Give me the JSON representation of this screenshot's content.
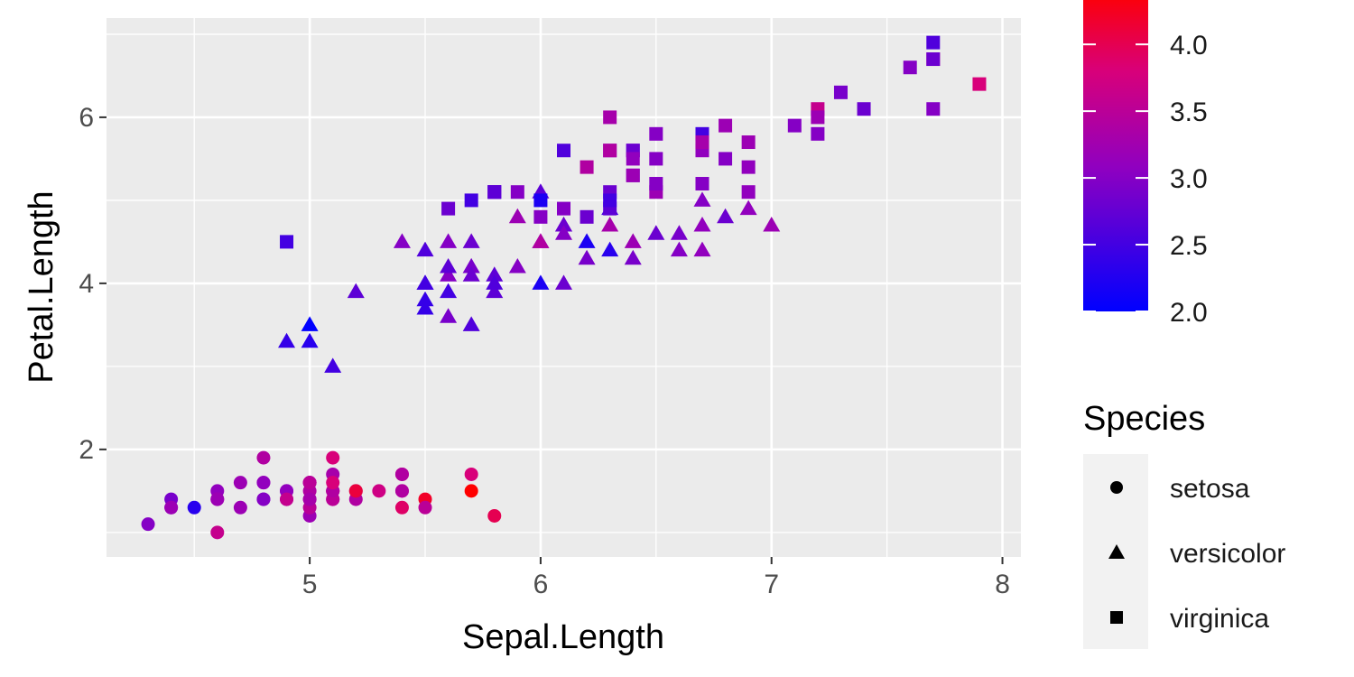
{
  "chart_data": {
    "type": "scatter",
    "title": "",
    "xlabel": "Sepal.Length",
    "ylabel": "Petal.Length",
    "xlim": [
      4.12,
      8.08
    ],
    "ylim": [
      0.705,
      7.195
    ],
    "x_ticks": [
      5,
      6,
      7,
      8
    ],
    "y_ticks": [
      2,
      4,
      6
    ],
    "grid": true,
    "color_scale": {
      "variable": "Sepal.Width",
      "low": "#0000ff",
      "high": "#ff0000",
      "range": [
        2.0,
        4.4
      ],
      "ticks": [
        "2.0",
        "2.5",
        "3.0",
        "3.5",
        "4.0"
      ]
    },
    "shape_legend": {
      "title": "Species",
      "entries": [
        "setosa",
        "versicolor",
        "virginica"
      ]
    },
    "series": [
      {
        "name": "setosa",
        "shape": "circle",
        "points": [
          [
            5.1,
            1.4,
            3.5
          ],
          [
            4.9,
            1.4,
            3.0
          ],
          [
            4.7,
            1.3,
            3.2
          ],
          [
            4.6,
            1.5,
            3.1
          ],
          [
            5.0,
            1.4,
            3.6
          ],
          [
            5.4,
            1.7,
            3.9
          ],
          [
            4.6,
            1.4,
            3.4
          ],
          [
            5.0,
            1.5,
            3.4
          ],
          [
            4.4,
            1.4,
            2.9
          ],
          [
            4.9,
            1.5,
            3.1
          ],
          [
            5.4,
            1.5,
            3.7
          ],
          [
            4.8,
            1.6,
            3.4
          ],
          [
            4.8,
            1.4,
            3.0
          ],
          [
            4.3,
            1.1,
            3.0
          ],
          [
            5.8,
            1.2,
            4.0
          ],
          [
            5.7,
            1.5,
            4.4
          ],
          [
            5.4,
            1.3,
            3.9
          ],
          [
            5.1,
            1.4,
            3.5
          ],
          [
            5.7,
            1.7,
            3.8
          ],
          [
            5.1,
            1.5,
            3.8
          ],
          [
            5.4,
            1.7,
            3.4
          ],
          [
            5.1,
            1.5,
            3.7
          ],
          [
            4.6,
            1.0,
            3.6
          ],
          [
            5.1,
            1.7,
            3.3
          ],
          [
            4.8,
            1.9,
            3.4
          ],
          [
            5.0,
            1.6,
            3.0
          ],
          [
            5.0,
            1.6,
            3.4
          ],
          [
            5.2,
            1.5,
            3.5
          ],
          [
            5.2,
            1.4,
            3.4
          ],
          [
            4.7,
            1.6,
            3.2
          ],
          [
            4.8,
            1.6,
            3.1
          ],
          [
            5.4,
            1.5,
            3.4
          ],
          [
            5.2,
            1.5,
            4.1
          ],
          [
            5.5,
            1.4,
            4.2
          ],
          [
            4.9,
            1.5,
            3.1
          ],
          [
            5.0,
            1.2,
            3.2
          ],
          [
            5.5,
            1.3,
            3.5
          ],
          [
            4.9,
            1.4,
            3.6
          ],
          [
            4.4,
            1.3,
            3.0
          ],
          [
            5.1,
            1.5,
            3.4
          ],
          [
            5.0,
            1.3,
            3.5
          ],
          [
            4.5,
            1.3,
            2.3
          ],
          [
            4.4,
            1.3,
            3.2
          ],
          [
            5.0,
            1.6,
            3.5
          ],
          [
            5.1,
            1.9,
            3.8
          ],
          [
            4.8,
            1.4,
            3.0
          ],
          [
            5.1,
            1.6,
            3.8
          ],
          [
            4.6,
            1.4,
            3.2
          ],
          [
            5.3,
            1.5,
            3.7
          ],
          [
            5.0,
            1.4,
            3.3
          ]
        ]
      },
      {
        "name": "versicolor",
        "shape": "triangle",
        "points": [
          [
            7.0,
            4.7,
            3.2
          ],
          [
            6.4,
            4.5,
            3.2
          ],
          [
            6.9,
            4.9,
            3.1
          ],
          [
            5.5,
            4.0,
            2.3
          ],
          [
            6.5,
            4.6,
            2.8
          ],
          [
            5.7,
            4.5,
            2.8
          ],
          [
            6.3,
            4.7,
            3.3
          ],
          [
            4.9,
            3.3,
            2.4
          ],
          [
            6.6,
            4.6,
            2.9
          ],
          [
            5.2,
            3.9,
            2.7
          ],
          [
            5.0,
            3.5,
            2.0
          ],
          [
            5.9,
            4.2,
            3.0
          ],
          [
            6.0,
            4.0,
            2.2
          ],
          [
            6.1,
            4.7,
            2.9
          ],
          [
            5.6,
            3.6,
            2.9
          ],
          [
            6.7,
            4.4,
            3.1
          ],
          [
            5.6,
            4.5,
            3.0
          ],
          [
            5.8,
            4.1,
            2.7
          ],
          [
            6.2,
            4.5,
            2.2
          ],
          [
            5.6,
            3.9,
            2.5
          ],
          [
            5.9,
            4.8,
            3.2
          ],
          [
            6.1,
            4.0,
            2.8
          ],
          [
            6.3,
            4.9,
            2.5
          ],
          [
            6.1,
            4.7,
            2.8
          ],
          [
            6.4,
            4.3,
            2.9
          ],
          [
            6.6,
            4.4,
            3.0
          ],
          [
            6.8,
            4.8,
            2.8
          ],
          [
            6.7,
            5.0,
            3.0
          ],
          [
            6.0,
            4.5,
            2.9
          ],
          [
            5.7,
            3.5,
            2.6
          ],
          [
            5.5,
            3.8,
            2.4
          ],
          [
            5.5,
            3.7,
            2.4
          ],
          [
            5.8,
            3.9,
            2.7
          ],
          [
            6.0,
            5.1,
            2.7
          ],
          [
            5.4,
            4.5,
            3.0
          ],
          [
            6.0,
            4.5,
            3.4
          ],
          [
            6.7,
            4.7,
            3.1
          ],
          [
            6.3,
            4.4,
            2.3
          ],
          [
            5.6,
            4.1,
            3.0
          ],
          [
            5.5,
            4.0,
            2.5
          ],
          [
            5.5,
            4.4,
            2.6
          ],
          [
            6.1,
            4.6,
            3.0
          ],
          [
            5.8,
            4.0,
            2.6
          ],
          [
            5.0,
            3.3,
            2.3
          ],
          [
            5.6,
            4.2,
            2.7
          ],
          [
            5.7,
            4.2,
            3.0
          ],
          [
            5.7,
            4.2,
            2.9
          ],
          [
            6.2,
            4.3,
            2.9
          ],
          [
            5.1,
            3.0,
            2.5
          ],
          [
            5.7,
            4.1,
            2.8
          ]
        ]
      },
      {
        "name": "virginica",
        "shape": "square",
        "points": [
          [
            6.3,
            6.0,
            3.3
          ],
          [
            5.8,
            5.1,
            2.7
          ],
          [
            7.1,
            5.9,
            3.0
          ],
          [
            6.3,
            5.6,
            2.9
          ],
          [
            6.5,
            5.8,
            3.0
          ],
          [
            7.6,
            6.6,
            3.0
          ],
          [
            4.9,
            4.5,
            2.5
          ],
          [
            7.3,
            6.3,
            2.9
          ],
          [
            6.7,
            5.8,
            2.5
          ],
          [
            7.2,
            6.1,
            3.6
          ],
          [
            6.5,
            5.1,
            3.2
          ],
          [
            6.4,
            5.3,
            2.7
          ],
          [
            6.8,
            5.5,
            3.0
          ],
          [
            5.7,
            5.0,
            2.5
          ],
          [
            5.8,
            5.1,
            2.8
          ],
          [
            6.4,
            5.3,
            3.2
          ],
          [
            6.5,
            5.5,
            3.0
          ],
          [
            7.7,
            6.7,
            3.8
          ],
          [
            7.7,
            6.9,
            2.6
          ],
          [
            6.0,
            5.0,
            2.2
          ],
          [
            6.9,
            5.7,
            3.2
          ],
          [
            5.6,
            4.9,
            2.8
          ],
          [
            7.7,
            6.7,
            2.8
          ],
          [
            6.3,
            4.9,
            2.7
          ],
          [
            6.7,
            5.7,
            3.3
          ],
          [
            7.2,
            6.0,
            3.2
          ],
          [
            6.2,
            4.8,
            2.8
          ],
          [
            6.1,
            4.9,
            3.0
          ],
          [
            6.4,
            5.6,
            2.8
          ],
          [
            7.2,
            5.8,
            3.0
          ],
          [
            7.4,
            6.1,
            2.8
          ],
          [
            7.9,
            6.4,
            3.8
          ],
          [
            6.4,
            5.6,
            2.8
          ],
          [
            6.3,
            5.1,
            2.8
          ],
          [
            6.1,
            5.6,
            2.6
          ],
          [
            7.7,
            6.1,
            3.0
          ],
          [
            6.3,
            5.6,
            3.4
          ],
          [
            6.4,
            5.5,
            3.1
          ],
          [
            6.0,
            4.8,
            3.0
          ],
          [
            6.9,
            5.4,
            3.1
          ],
          [
            6.7,
            5.6,
            3.1
          ],
          [
            6.9,
            5.1,
            3.1
          ],
          [
            5.8,
            5.1,
            2.7
          ],
          [
            6.8,
            5.9,
            3.2
          ],
          [
            6.7,
            5.7,
            3.3
          ],
          [
            6.7,
            5.2,
            3.0
          ],
          [
            6.3,
            5.0,
            2.5
          ],
          [
            6.5,
            5.2,
            3.0
          ],
          [
            6.2,
            5.4,
            3.4
          ],
          [
            5.9,
            5.1,
            3.0
          ]
        ]
      }
    ]
  }
}
